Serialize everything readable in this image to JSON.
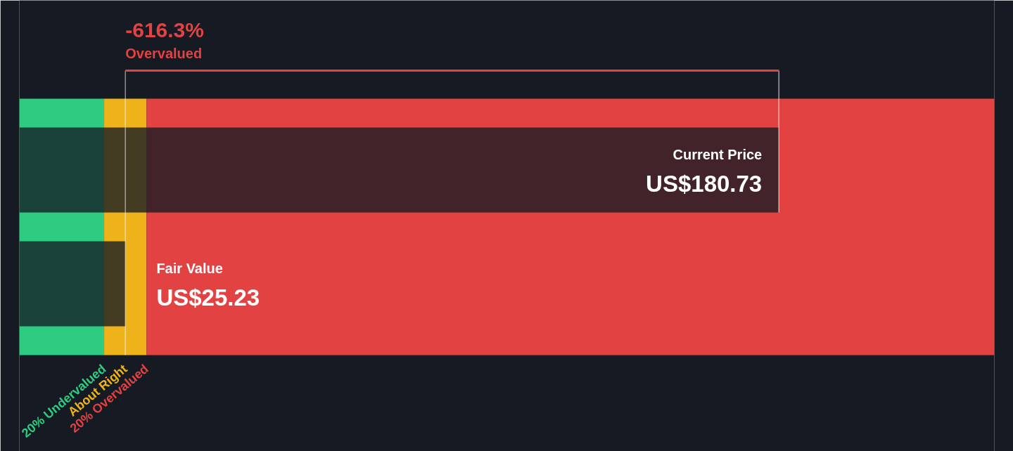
{
  "chart_data": {
    "type": "bar",
    "orientation": "horizontal",
    "categories": [
      "Current Price",
      "Fair Value"
    ],
    "values": [
      180.73,
      25.23
    ],
    "value_labels": [
      "US$180.73",
      "US$25.23"
    ],
    "colors": [
      "#151b24",
      "#151b24"
    ],
    "xlim": [
      0,
      232
    ],
    "tick_labels": false,
    "bands": [
      {
        "axis": "x",
        "from": 0,
        "to": 20.18,
        "label": "20% Undervalued",
        "color": "#2ecc81"
      },
      {
        "axis": "x",
        "from": 20.18,
        "to": 30.28,
        "label": "About Right",
        "color": "#eeb31b"
      },
      {
        "axis": "x",
        "from": 30.28,
        "to": 232,
        "label": "20% Overvalued",
        "color": "#e34242"
      }
    ],
    "ref_lines": [
      {
        "axis": "x",
        "value": 25.23,
        "color": "#ffffff"
      }
    ],
    "annotations": [
      "-616.3%",
      "Overvalued"
    ]
  }
}
